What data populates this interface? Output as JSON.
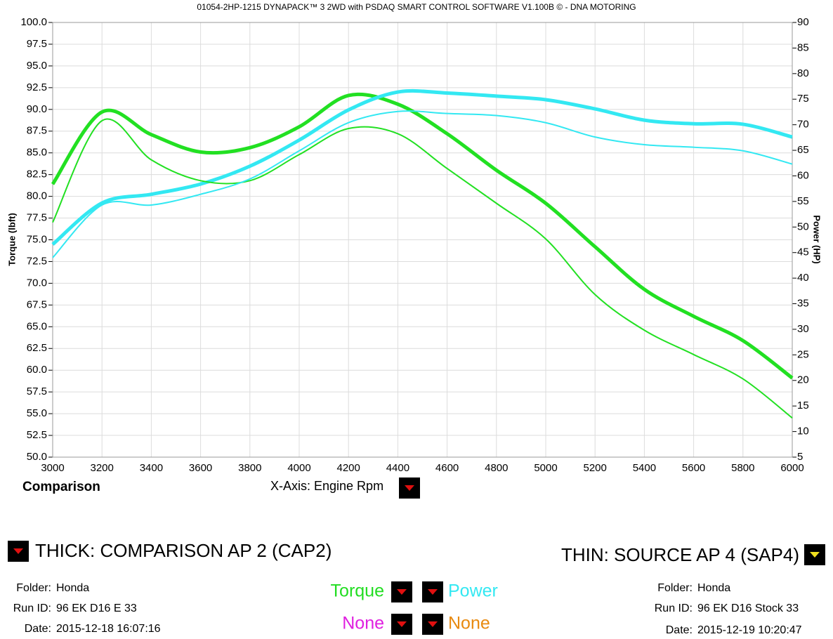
{
  "chart_data": {
    "type": "line",
    "title": "01054-2HP-1215 DYNAPACK™ 3 2WD with PSDAQ SMART CONTROL SOFTWARE V1.100B © - DNA MOTORING",
    "ylabel": "Torque (lbft)",
    "y2label": "Power (HP)",
    "x": [
      3000,
      3200,
      3400,
      3600,
      3800,
      4000,
      4200,
      4400,
      4600,
      4800,
      5000,
      5200,
      5400,
      5600,
      5800,
      6000
    ],
    "series": [
      {
        "color": "#22e022",
        "values": [
          81.4,
          89.7,
          87.1,
          85.1,
          85.6,
          88.0,
          91.6,
          90.6,
          87.2,
          83.0,
          79.2,
          74.2,
          69.3,
          66.2,
          63.4,
          59.1
        ]
      },
      {
        "color": "#33e8f2",
        "axis": "y2",
        "values": [
          46.6,
          54.7,
          56.4,
          58.4,
          61.9,
          67.0,
          72.9,
          76.4,
          76.2,
          75.6,
          74.9,
          73.1,
          70.9,
          70.2,
          70.1,
          67.6
        ]
      },
      {
        "color": "#22e022",
        "values": [
          77.0,
          88.7,
          84.2,
          81.8,
          81.8,
          84.8,
          87.8,
          87.2,
          83.2,
          79.2,
          75.1,
          68.7,
          64.6,
          61.8,
          59.0,
          54.5
        ]
      },
      {
        "color": "#33e8f2",
        "axis": "y2",
        "values": [
          44.0,
          54.3,
          54.3,
          56.4,
          59.4,
          64.9,
          70.4,
          72.6,
          72.2,
          71.8,
          70.4,
          67.6,
          66.1,
          65.6,
          64.9,
          62.3
        ]
      }
    ],
    "xlim": [
      3000,
      6000
    ],
    "xticks": [
      3000,
      3200,
      3400,
      3600,
      3800,
      4000,
      4200,
      4400,
      4600,
      4800,
      5000,
      5200,
      5400,
      5600,
      5800,
      6000
    ],
    "ylim": [
      50,
      100
    ],
    "yticks": [
      {
        "value": 50,
        "label": "50.0"
      },
      52.5,
      {
        "value": 55,
        "label": "55.0"
      },
      57.5,
      {
        "value": 60,
        "label": "60.0"
      },
      62.5,
      {
        "value": 65,
        "label": "65.0"
      },
      67.5,
      {
        "value": 70,
        "label": "70.0"
      },
      72.5,
      {
        "value": 75,
        "label": "75.0"
      },
      77.5,
      {
        "value": 80,
        "label": "80.0"
      },
      82.5,
      {
        "value": 85,
        "label": "85.0"
      },
      87.5,
      {
        "value": 90,
        "label": "90.0"
      },
      92.5,
      {
        "value": 95,
        "label": "95.0"
      },
      97.5,
      {
        "value": 100,
        "label": "100.0"
      }
    ],
    "y2lim": [
      5,
      90
    ],
    "y2ticks": [
      5,
      10,
      15,
      20,
      25,
      30,
      35,
      40,
      45,
      50,
      55,
      60,
      65,
      70,
      75,
      80,
      85,
      90
    ],
    "grid": true
  },
  "mode_label": "Comparison",
  "x_axis_label": "X-Axis: Engine Rpm",
  "thick": {
    "label": "THICK: COMPARISON AP 2 (CAP2)",
    "folder_label": "Folder:",
    "folder": "Honda",
    "run_label": "Run ID:",
    "run": "96 EK D16 E 33",
    "date_label": "Date:",
    "date": "2015-12-18 16:07:16"
  },
  "thin": {
    "label": "THIN: SOURCE AP 4 (SAP4)",
    "folder_label": "Folder:",
    "folder": "Honda",
    "run_label": "Run ID:",
    "run": "96 EK D16 Stock 33",
    "date_label": "Date:",
    "date": "2015-12-19 10:20:47"
  },
  "legend": [
    {
      "text": "Torque",
      "color": "#22dd22"
    },
    {
      "text": "Power",
      "color": "#33e8f2"
    },
    {
      "text": "None",
      "color": "#e020e0"
    },
    {
      "text": "None",
      "color": "#e88a10"
    }
  ]
}
